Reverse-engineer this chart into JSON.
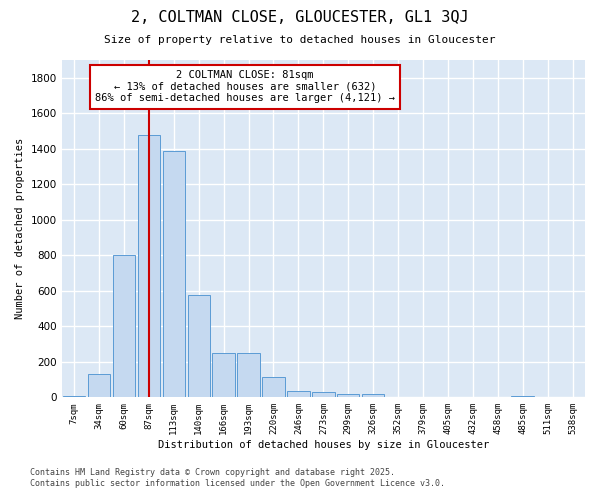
{
  "title": "2, COLTMAN CLOSE, GLOUCESTER, GL1 3QJ",
  "subtitle": "Size of property relative to detached houses in Gloucester",
  "xlabel": "Distribution of detached houses by size in Gloucester",
  "ylabel": "Number of detached properties",
  "bins": [
    "7sqm",
    "34sqm",
    "60sqm",
    "87sqm",
    "113sqm",
    "140sqm",
    "166sqm",
    "193sqm",
    "220sqm",
    "246sqm",
    "273sqm",
    "299sqm",
    "326sqm",
    "352sqm",
    "379sqm",
    "405sqm",
    "432sqm",
    "458sqm",
    "485sqm",
    "511sqm",
    "538sqm"
  ],
  "values": [
    10,
    130,
    800,
    1480,
    1390,
    575,
    250,
    250,
    115,
    35,
    30,
    20,
    20,
    0,
    0,
    0,
    0,
    0,
    10,
    0,
    0
  ],
  "bar_color": "#c5d9f0",
  "bar_edge_color": "#5b9bd5",
  "property_size": "81sqm",
  "pct_smaller": 13,
  "n_smaller": 632,
  "pct_semi_larger": 86,
  "n_semi_larger": 4121,
  "annotation_box_color": "#ffffff",
  "annotation_border_color": "#cc0000",
  "vline_color": "#cc0000",
  "vline_x": 3,
  "ylim": [
    0,
    1900
  ],
  "yticks": [
    0,
    200,
    400,
    600,
    800,
    1000,
    1200,
    1400,
    1600,
    1800
  ],
  "footer_line1": "Contains HM Land Registry data © Crown copyright and database right 2025.",
  "footer_line2": "Contains public sector information licensed under the Open Government Licence v3.0.",
  "fig_bg_color": "#ffffff",
  "plot_bg_color": "#dce8f5",
  "grid_color": "#ffffff"
}
